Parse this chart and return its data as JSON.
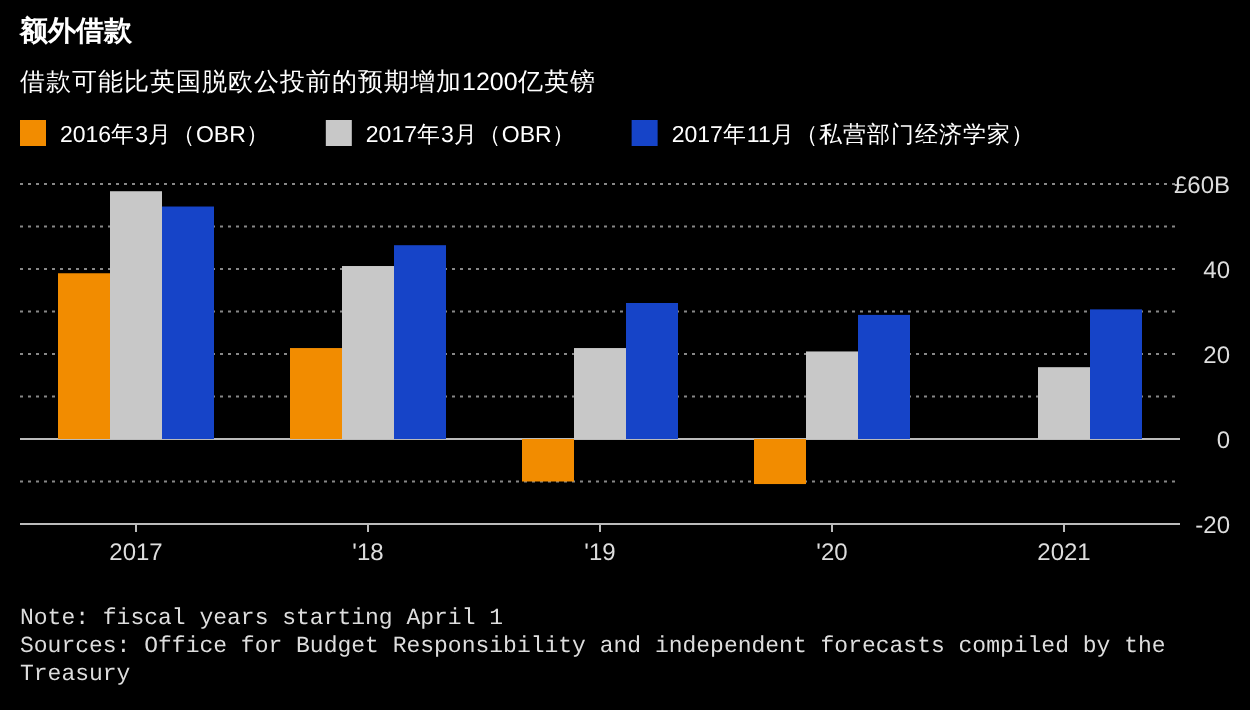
{
  "chart_data": {
    "type": "bar",
    "title": "额外借款",
    "subtitle": "借款可能比英国脱欧公投前的预期增加1200亿英镑",
    "categories": [
      "2017",
      "'18",
      "'19",
      "'20",
      "2021"
    ],
    "series": [
      {
        "name": "2016年3月（OBR）",
        "color": "#f28c00",
        "values": [
          39.0,
          21.4,
          -10.0,
          -10.6,
          null
        ]
      },
      {
        "name": "2017年3月（OBR）",
        "color": "#c8c8c8",
        "values": [
          58.3,
          40.7,
          21.4,
          20.6,
          16.9
        ]
      },
      {
        "name": "2017年11月（私营部门经济学家）",
        "color": "#1644c8",
        "values": [
          54.7,
          45.6,
          32.0,
          29.2,
          30.5
        ]
      }
    ],
    "ylim": [
      -20,
      60
    ],
    "yticks": [
      {
        "value": 60,
        "label": "£60B"
      },
      {
        "value": 50,
        "label": null
      },
      40,
      {
        "value": 30,
        "label": null
      },
      20,
      {
        "value": 10,
        "label": null
      },
      0,
      {
        "value": -10,
        "label": null
      },
      -20
    ],
    "grid": "y",
    "legend": "top",
    "annotations": [
      "Note: fiscal years starting April 1",
      "Sources: Office for Budget Responsibility and independent forecasts compiled by the Treasury"
    ]
  }
}
